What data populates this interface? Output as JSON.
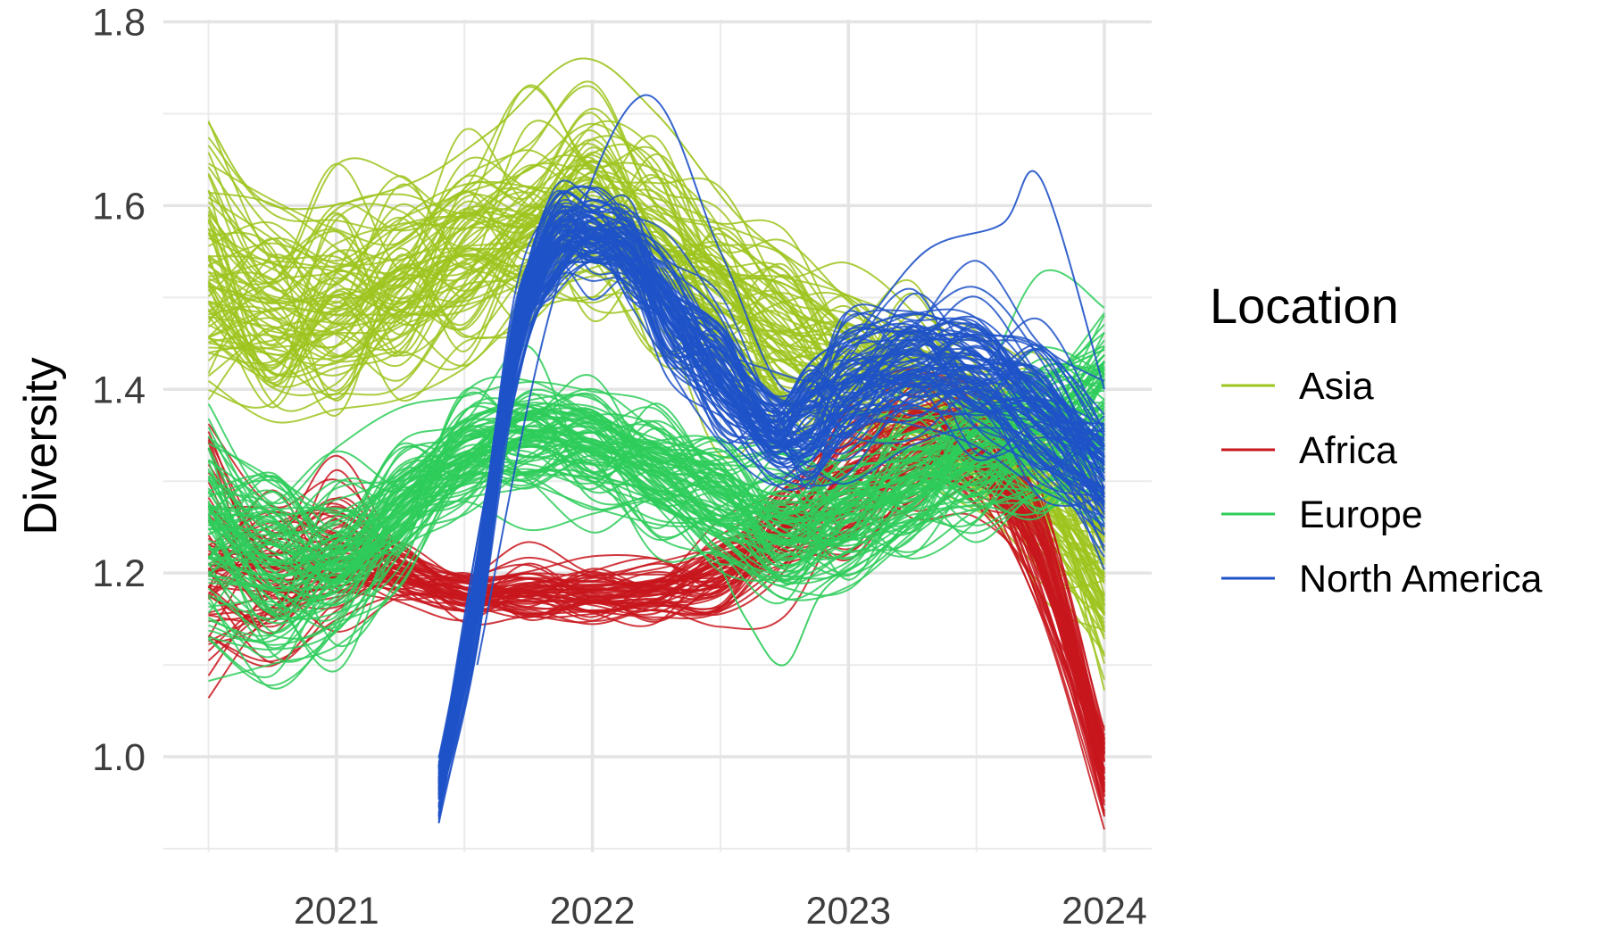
{
  "chart_data": {
    "type": "line",
    "title": "",
    "xlabel": "",
    "ylabel": "Diversity",
    "xlim": [
      2020.5,
      2024.0
    ],
    "ylim": [
      0.9,
      1.8
    ],
    "x_ticks": [
      "2021",
      "2022",
      "2023",
      "2024"
    ],
    "y_ticks": [
      "1.0",
      "1.2",
      "1.4",
      "1.6",
      "1.8"
    ],
    "grid": true,
    "legend": {
      "title": "Location",
      "position": "right"
    },
    "series": [
      {
        "name": "Asia",
        "color": "#9DC41F",
        "count": 80,
        "x": [
          2020.5,
          2020.75,
          2021.0,
          2021.25,
          2021.5,
          2021.75,
          2022.0,
          2022.25,
          2022.5,
          2022.75,
          2023.0,
          2023.25,
          2023.5,
          2023.75,
          2024.0
        ],
        "y_mean": [
          1.52,
          1.48,
          1.49,
          1.51,
          1.54,
          1.58,
          1.6,
          1.56,
          1.5,
          1.46,
          1.42,
          1.4,
          1.36,
          1.3,
          1.2
        ],
        "y_spread": [
          0.09,
          0.07,
          0.07,
          0.07,
          0.07,
          0.06,
          0.07,
          0.07,
          0.06,
          0.06,
          0.06,
          0.06,
          0.05,
          0.06,
          0.07
        ]
      },
      {
        "name": "Africa",
        "color": "#C8161D",
        "count": 60,
        "x": [
          2020.5,
          2020.75,
          2021.0,
          2021.25,
          2021.5,
          2021.75,
          2022.0,
          2022.25,
          2022.5,
          2022.75,
          2023.0,
          2023.25,
          2023.5,
          2023.75,
          2024.0
        ],
        "y_mean": [
          1.22,
          1.2,
          1.22,
          1.2,
          1.18,
          1.18,
          1.18,
          1.18,
          1.2,
          1.25,
          1.3,
          1.34,
          1.33,
          1.22,
          0.99
        ],
        "y_spread": [
          0.09,
          0.06,
          0.05,
          0.02,
          0.02,
          0.02,
          0.02,
          0.02,
          0.03,
          0.04,
          0.05,
          0.05,
          0.05,
          0.04,
          0.04
        ]
      },
      {
        "name": "Europe",
        "color": "#2ECC5A",
        "count": 90,
        "x": [
          2020.5,
          2020.75,
          2021.0,
          2021.25,
          2021.5,
          2021.75,
          2022.0,
          2022.25,
          2022.5,
          2022.75,
          2023.0,
          2023.25,
          2023.5,
          2023.75,
          2024.0
        ],
        "y_mean": [
          1.25,
          1.2,
          1.21,
          1.27,
          1.33,
          1.35,
          1.34,
          1.31,
          1.28,
          1.25,
          1.27,
          1.3,
          1.33,
          1.35,
          1.38
        ],
        "y_spread": [
          0.07,
          0.07,
          0.06,
          0.05,
          0.04,
          0.04,
          0.04,
          0.04,
          0.04,
          0.05,
          0.05,
          0.05,
          0.05,
          0.06,
          0.07
        ]
      },
      {
        "name": "North America",
        "color": "#1F52C8",
        "count": 90,
        "x": [
          2021.4,
          2021.55,
          2021.7,
          2021.85,
          2022.0,
          2022.15,
          2022.3,
          2022.5,
          2022.7,
          2022.85,
          2023.0,
          2023.25,
          2023.5,
          2023.75,
          2024.0
        ],
        "y_mean": [
          0.97,
          1.18,
          1.45,
          1.56,
          1.57,
          1.55,
          1.49,
          1.42,
          1.36,
          1.37,
          1.4,
          1.43,
          1.42,
          1.38,
          1.31
        ],
        "y_spread": [
          0.02,
          0.03,
          0.03,
          0.03,
          0.03,
          0.03,
          0.04,
          0.04,
          0.03,
          0.04,
          0.05,
          0.05,
          0.05,
          0.05,
          0.05
        ]
      }
    ],
    "extremes": {
      "North America": {
        "x": [
          2021.55,
          2021.85,
          2022.2,
          2022.5,
          2022.75,
          2023.0,
          2023.3,
          2023.6,
          2023.75,
          2024.0
        ],
        "y": [
          1.1,
          1.5,
          1.72,
          1.55,
          1.4,
          1.45,
          1.55,
          1.58,
          1.63,
          1.4
        ]
      },
      "Europe": {
        "x": [
          2021.5,
          2022.0,
          2022.4,
          2022.6,
          2022.75,
          2022.9,
          2023.1,
          2023.5,
          2024.0
        ],
        "y": [
          1.35,
          1.33,
          1.25,
          1.15,
          1.1,
          1.18,
          1.22,
          1.3,
          1.35
        ]
      },
      "Asia": {
        "x": [
          2020.5,
          2020.75,
          2021.25,
          2021.6,
          2021.95,
          2022.25,
          2022.6,
          2023.0,
          2023.5,
          2024.0
        ],
        "y": [
          1.69,
          1.6,
          1.62,
          1.68,
          1.76,
          1.7,
          1.58,
          1.5,
          1.4,
          1.3
        ]
      }
    }
  }
}
